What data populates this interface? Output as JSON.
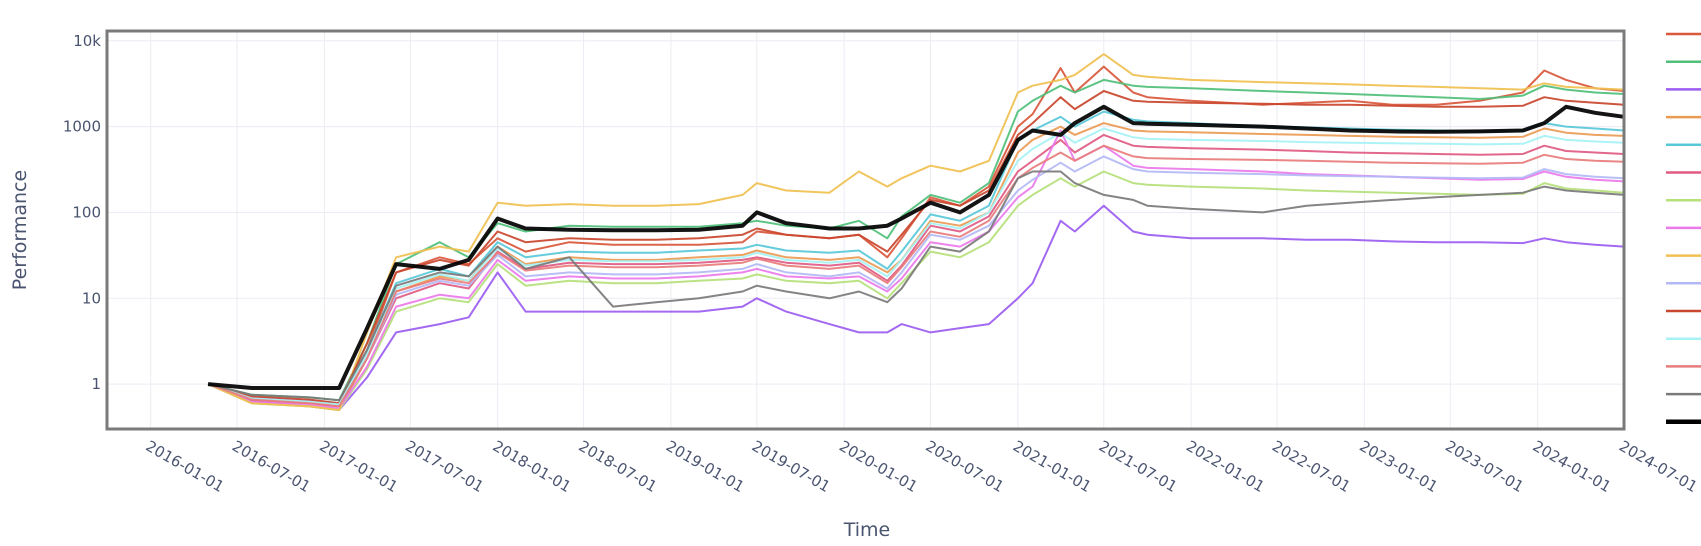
{
  "chart_data": {
    "type": "line",
    "title": "",
    "xlabel": "Time",
    "ylabel": "Performance",
    "y_scale": "log",
    "ylim": [
      0.3,
      13000
    ],
    "xlim": [
      "2015-10-01",
      "2024-07-01"
    ],
    "grid": true,
    "legend_position": "right",
    "x_ticks": [
      "2016-01-01",
      "2016-07-01",
      "2017-01-01",
      "2017-07-01",
      "2018-01-01",
      "2018-07-01",
      "2019-01-01",
      "2019-07-01",
      "2020-01-01",
      "2020-07-01",
      "2021-01-01",
      "2021-07-01",
      "2022-01-01",
      "2022-07-01",
      "2023-01-01",
      "2023-07-01",
      "2024-01-01",
      "2024-07-01"
    ],
    "y_ticks": [
      {
        "value": 1,
        "label": "1"
      },
      {
        "value": 10,
        "label": "10"
      },
      {
        "value": 100,
        "label": "100"
      },
      {
        "value": 1000,
        "label": "1000"
      },
      {
        "value": 10000,
        "label": "10k"
      }
    ],
    "shared_x": [
      "2016-05-01",
      "2016-08-01",
      "2016-12-01",
      "2017-02-01",
      "2017-04-01",
      "2017-06-01",
      "2017-09-01",
      "2017-11-01",
      "2018-01-01",
      "2018-03-01",
      "2018-06-01",
      "2018-09-01",
      "2018-12-01",
      "2019-03-01",
      "2019-06-01",
      "2019-07-01",
      "2019-09-01",
      "2019-12-01",
      "2020-02-01",
      "2020-04-01",
      "2020-05-01",
      "2020-07-01",
      "2020-09-01",
      "2020-11-01",
      "2021-01-01",
      "2021-02-01",
      "2021-04-01",
      "2021-05-01",
      "2021-07-01",
      "2021-09-01",
      "2021-10-01",
      "2022-01-01",
      "2022-06-01",
      "2022-09-01",
      "2022-12-01",
      "2023-03-01",
      "2023-06-01",
      "2023-09-01",
      "2023-12-01",
      "2024-01-15",
      "2024-03-01",
      "2024-05-01",
      "2024-07-01"
    ],
    "series": [
      {
        "color": "#d9573b",
        "width": 2,
        "values": [
          1,
          0.7,
          0.6,
          0.6,
          2.5,
          20,
          30,
          25,
          50,
          35,
          45,
          42,
          42,
          42,
          45,
          60,
          55,
          50,
          55,
          30,
          50,
          150,
          120,
          200,
          1000,
          1400,
          4800,
          2500,
          5000,
          2500,
          2200,
          2000,
          1800,
          1900,
          2000,
          1800,
          1800,
          2000,
          2500,
          4500,
          3500,
          2800,
          2600
        ]
      },
      {
        "color": "#4fbf7a",
        "width": 2,
        "values": [
          1,
          0.75,
          0.7,
          0.65,
          3,
          25,
          45,
          30,
          75,
          60,
          70,
          68,
          68,
          68,
          75,
          80,
          70,
          65,
          80,
          50,
          90,
          160,
          130,
          220,
          1500,
          2000,
          3000,
          2500,
          3500,
          3000,
          2900,
          2800,
          2600,
          2500,
          2400,
          2300,
          2200,
          2100,
          2300,
          3000,
          2700,
          2500,
          2400
        ]
      },
      {
        "color": "#9b5cf0",
        "width": 2,
        "values": [
          1,
          0.65,
          0.55,
          0.5,
          1.2,
          4,
          5,
          6,
          20,
          7,
          7,
          7,
          7,
          7,
          8,
          10,
          7,
          5,
          4,
          4,
          5,
          4,
          4.5,
          5,
          10,
          15,
          80,
          60,
          120,
          60,
          55,
          50,
          50,
          48,
          48,
          46,
          45,
          45,
          44,
          50,
          45,
          42,
          40
        ]
      },
      {
        "color": "#ea9a53",
        "width": 2,
        "values": [
          1,
          0.6,
          0.55,
          0.5,
          2,
          12,
          18,
          16,
          40,
          25,
          30,
          28,
          28,
          30,
          32,
          36,
          30,
          28,
          30,
          20,
          28,
          80,
          70,
          100,
          500,
          700,
          1000,
          800,
          1100,
          900,
          880,
          860,
          820,
          800,
          780,
          760,
          750,
          740,
          760,
          950,
          850,
          800,
          780
        ]
      },
      {
        "color": "#58c8d8",
        "width": 2,
        "values": [
          1,
          0.7,
          0.65,
          0.6,
          2.5,
          15,
          22,
          18,
          45,
          30,
          35,
          34,
          34,
          36,
          38,
          42,
          36,
          34,
          36,
          22,
          35,
          95,
          80,
          120,
          700,
          900,
          1300,
          1000,
          1500,
          1200,
          1150,
          1100,
          1000,
          980,
          950,
          920,
          900,
          880,
          900,
          1100,
          1000,
          950,
          900
        ]
      },
      {
        "color": "#e05a82",
        "width": 2,
        "values": [
          1,
          0.65,
          0.6,
          0.55,
          2,
          10,
          15,
          13,
          35,
          22,
          26,
          25,
          25,
          26,
          28,
          30,
          26,
          24,
          26,
          16,
          24,
          70,
          60,
          90,
          300,
          400,
          700,
          500,
          800,
          600,
          580,
          560,
          540,
          520,
          500,
          490,
          480,
          470,
          480,
          600,
          520,
          500,
          480
        ]
      },
      {
        "color": "#b5e07a",
        "width": 2,
        "values": [
          1,
          0.6,
          0.55,
          0.5,
          1.5,
          7,
          10,
          9,
          25,
          14,
          16,
          15,
          15,
          16,
          17,
          19,
          16,
          15,
          16,
          10,
          15,
          35,
          30,
          45,
          120,
          160,
          250,
          200,
          300,
          220,
          210,
          200,
          190,
          180,
          175,
          170,
          165,
          160,
          165,
          220,
          190,
          180,
          170
        ]
      },
      {
        "color": "#ea7aea",
        "width": 2,
        "values": [
          1,
          0.62,
          0.58,
          0.52,
          1.6,
          8,
          11,
          10,
          28,
          16,
          18,
          17,
          17,
          18,
          20,
          22,
          18,
          17,
          18,
          12,
          17,
          45,
          40,
          60,
          150,
          200,
          900,
          400,
          600,
          350,
          330,
          320,
          300,
          280,
          270,
          260,
          250,
          240,
          245,
          300,
          260,
          240,
          230
        ]
      },
      {
        "color": "#f0c050",
        "width": 2,
        "values": [
          1,
          0.6,
          0.55,
          0.5,
          4,
          30,
          40,
          35,
          130,
          120,
          125,
          120,
          120,
          125,
          160,
          220,
          180,
          170,
          300,
          200,
          250,
          350,
          300,
          400,
          2500,
          3000,
          3500,
          4000,
          7000,
          4000,
          3800,
          3500,
          3300,
          3200,
          3100,
          3000,
          2900,
          2800,
          2700,
          3200,
          2900,
          2800,
          2700
        ]
      },
      {
        "color": "#b3b8f5",
        "width": 2,
        "values": [
          1,
          0.7,
          0.65,
          0.6,
          2,
          11,
          16,
          14,
          32,
          18,
          20,
          19,
          19,
          20,
          22,
          25,
          20,
          18,
          20,
          13,
          20,
          55,
          48,
          70,
          180,
          240,
          380,
          300,
          450,
          320,
          300,
          290,
          280,
          270,
          265,
          260,
          255,
          250,
          255,
          320,
          280,
          260,
          250
        ]
      },
      {
        "color": "#c9472e",
        "width": 2,
        "values": [
          1,
          0.72,
          0.66,
          0.6,
          3,
          20,
          28,
          24,
          60,
          45,
          50,
          48,
          48,
          50,
          55,
          65,
          55,
          50,
          55,
          35,
          55,
          140,
          120,
          180,
          800,
          1100,
          2200,
          1600,
          2600,
          2000,
          1950,
          1900,
          1850,
          1800,
          1800,
          1750,
          1700,
          1700,
          1750,
          2200,
          2000,
          1900,
          1800
        ]
      },
      {
        "color": "#a6f2f5",
        "width": 2,
        "values": [
          1,
          0.68,
          0.62,
          0.58,
          2.2,
          13,
          19,
          16,
          38,
          24,
          28,
          27,
          27,
          28,
          30,
          34,
          28,
          26,
          28,
          18,
          28,
          75,
          65,
          100,
          400,
          550,
          850,
          650,
          950,
          750,
          720,
          700,
          680,
          660,
          650,
          640,
          630,
          620,
          630,
          780,
          700,
          670,
          650
        ]
      },
      {
        "color": "#e87c7c",
        "width": 2,
        "values": [
          1,
          0.66,
          0.6,
          0.55,
          2,
          12,
          17,
          15,
          34,
          21,
          24,
          23,
          23,
          24,
          26,
          29,
          24,
          22,
          24,
          15,
          23,
          60,
          52,
          80,
          250,
          330,
          500,
          400,
          600,
          450,
          430,
          420,
          410,
          400,
          390,
          380,
          375,
          370,
          380,
          470,
          420,
          400,
          390
        ]
      },
      {
        "color": "#7a7a7a",
        "width": 2,
        "values": [
          1,
          0.75,
          0.7,
          0.65,
          2.5,
          14,
          20,
          18,
          40,
          22,
          30,
          8,
          9,
          10,
          12,
          14,
          12,
          10,
          12,
          9,
          13,
          40,
          35,
          60,
          250,
          300,
          300,
          220,
          160,
          140,
          120,
          110,
          100,
          120,
          130,
          140,
          150,
          160,
          170,
          200,
          180,
          170,
          160
        ]
      },
      {
        "color": "#000000",
        "width": 4,
        "values": [
          1,
          0.9,
          0.9,
          0.9,
          4.5,
          25,
          22,
          28,
          85,
          65,
          63,
          62,
          62,
          63,
          70,
          100,
          75,
          65,
          65,
          70,
          85,
          130,
          100,
          160,
          700,
          900,
          800,
          1100,
          1700,
          1100,
          1080,
          1050,
          1000,
          950,
          900,
          880,
          870,
          880,
          900,
          1100,
          1700,
          1450,
          1300
        ]
      }
    ]
  }
}
